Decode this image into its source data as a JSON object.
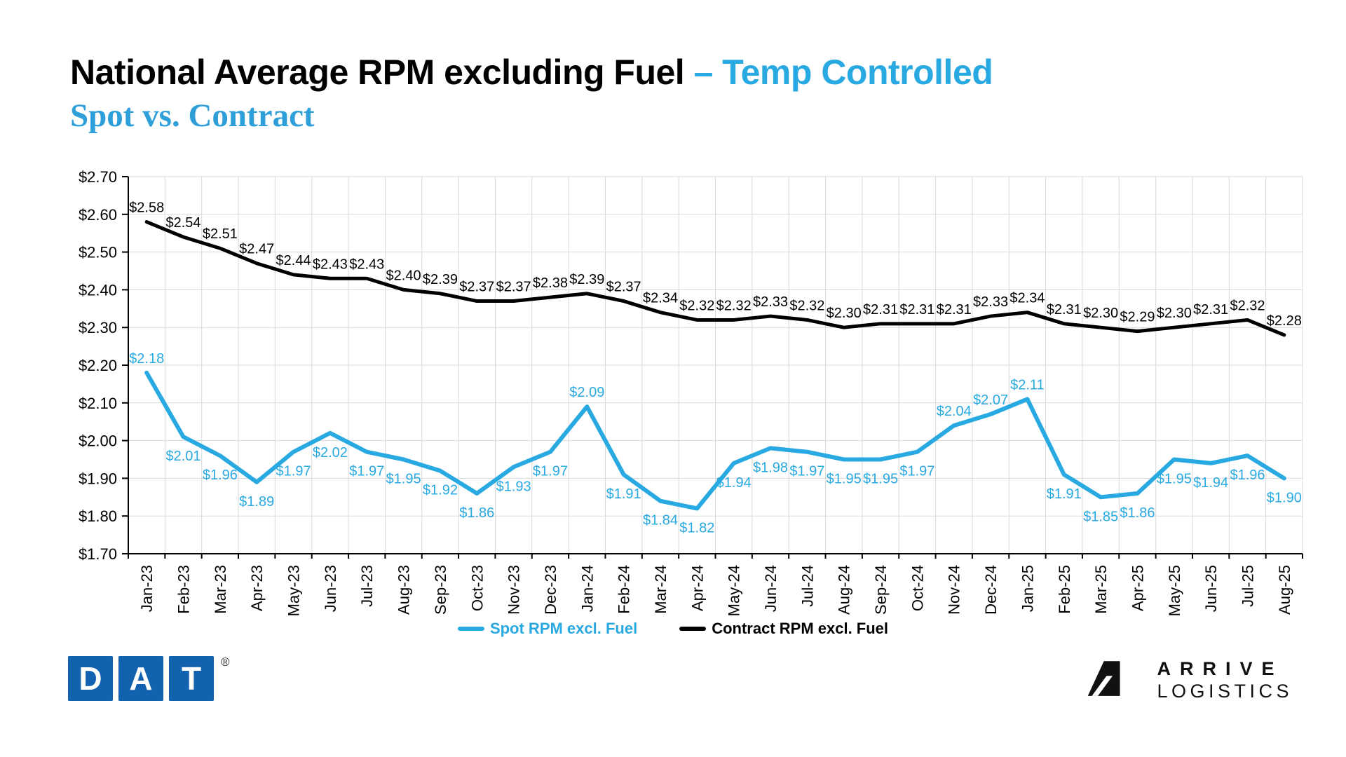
{
  "page": {
    "title_black": "National Average RPM excluding Fuel",
    "title_accent": " – Temp Controlled",
    "subtitle": "Spot vs. Contract",
    "accent_color": "#29A9E1"
  },
  "chart_data": {
    "type": "line",
    "title": "National Average RPM excluding Fuel – Temp Controlled, Spot vs. Contract",
    "categories": [
      "Jan-23",
      "Feb-23",
      "Mar-23",
      "Apr-23",
      "May-23",
      "Jun-23",
      "Jul-23",
      "Aug-23",
      "Sep-23",
      "Oct-23",
      "Nov-23",
      "Dec-23",
      "Jan-24",
      "Feb-24",
      "Mar-24",
      "Apr-24",
      "May-24",
      "Jun-24",
      "Jul-24",
      "Aug-24",
      "Sep-24",
      "Oct-24",
      "Nov-24",
      "Dec-24",
      "Jan-25",
      "Feb-25",
      "Mar-25",
      "Apr-25",
      "May-25",
      "Jun-25",
      "Jul-25",
      "Aug-25"
    ],
    "series": [
      {
        "name": "Spot RPM excl. Fuel",
        "color": "#29A9E1",
        "values": [
          2.18,
          2.01,
          1.96,
          1.89,
          1.97,
          2.02,
          1.97,
          1.95,
          1.92,
          1.86,
          1.93,
          1.97,
          2.09,
          1.91,
          1.84,
          1.82,
          1.94,
          1.98,
          1.97,
          1.95,
          1.95,
          1.97,
          2.04,
          2.07,
          2.11,
          1.91,
          1.85,
          1.86,
          1.95,
          1.94,
          1.96,
          1.9
        ],
        "label_above_indices": [
          0,
          12,
          22,
          23,
          24
        ]
      },
      {
        "name": "Contract RPM excl. Fuel",
        "color": "#000000",
        "values": [
          2.58,
          2.54,
          2.51,
          2.47,
          2.44,
          2.43,
          2.43,
          2.4,
          2.39,
          2.37,
          2.37,
          2.38,
          2.39,
          2.37,
          2.34,
          2.32,
          2.32,
          2.33,
          2.32,
          2.3,
          2.31,
          2.31,
          2.31,
          2.33,
          2.34,
          2.31,
          2.3,
          2.29,
          2.3,
          2.31,
          2.32,
          2.28
        ],
        "label_above_indices": []
      }
    ],
    "ylim": [
      1.7,
      2.7
    ],
    "y_tick_labels": [
      "$1.70",
      "$1.80",
      "$1.90",
      "$2.00",
      "$2.10",
      "$2.20",
      "$2.30",
      "$2.40",
      "$2.50",
      "$2.60",
      "$2.70"
    ],
    "label_format": "$0.00",
    "grid": true,
    "legend_position": "bottom"
  },
  "footer": {
    "dat": {
      "letters": [
        "D",
        "A",
        "T"
      ],
      "registered": "®",
      "color": "#1262B0"
    },
    "arrive": {
      "line1": "ARRIVE",
      "line2": "LOGISTICS"
    }
  }
}
